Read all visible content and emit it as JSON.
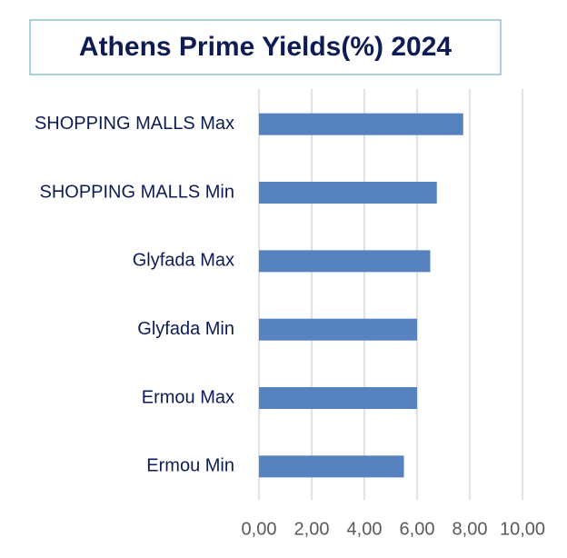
{
  "chart_data": {
    "type": "bar",
    "orientation": "horizontal",
    "title": "Athens Prime Yields(%) 2024",
    "categories": [
      "SHOPPING MALLS Max",
      "SHOPPING MALLS Min",
      "Glyfada Max",
      "Glyfada Min",
      "Ermou Max",
      "Ermou Min"
    ],
    "values": [
      7.75,
      6.75,
      6.5,
      6.0,
      6.0,
      5.5
    ],
    "color": "#5682c0",
    "xlim": [
      0,
      10
    ],
    "xticks": [
      {
        "value": 0,
        "label": "0,00"
      },
      {
        "value": 2,
        "label": "2,00"
      },
      {
        "value": 4,
        "label": "4,00"
      },
      {
        "value": 6,
        "label": "6,00"
      },
      {
        "value": 8,
        "label": "8,00"
      },
      {
        "value": 10,
        "label": "10,00"
      }
    ],
    "grid": true
  }
}
